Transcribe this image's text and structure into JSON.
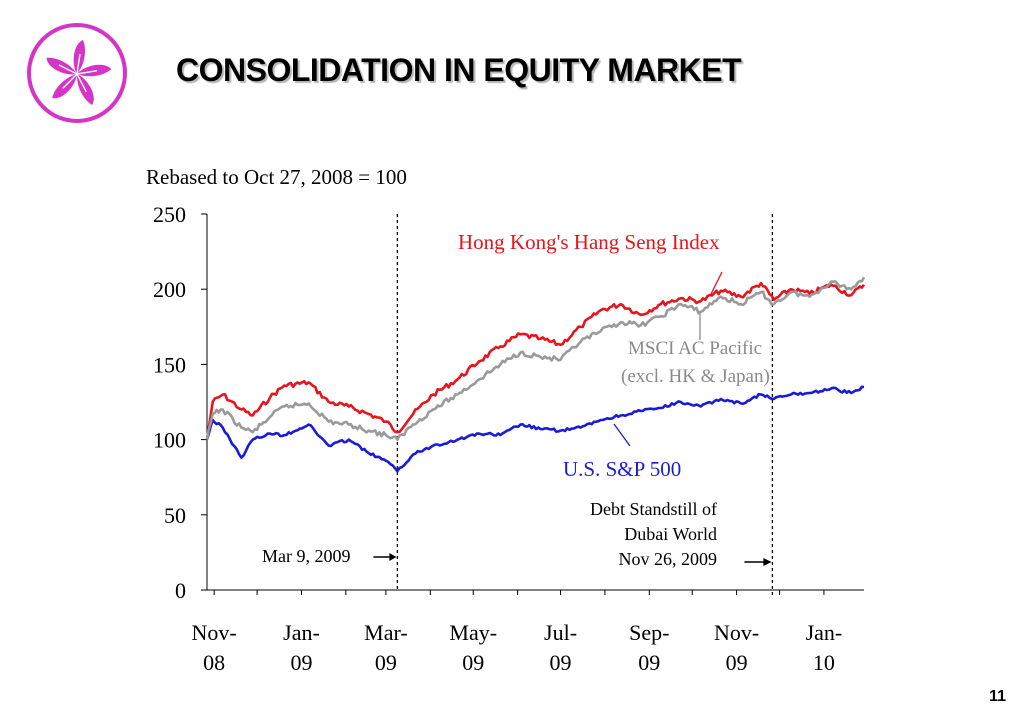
{
  "slide": {
    "title": "CONSOLIDATION IN EQUITY MARKET",
    "page_number": "11",
    "logo_icon": "bauhinia-flower-icon"
  },
  "colors": {
    "hang_seng": "#e8141b",
    "msci": "#9a9a9a",
    "sp500": "#1b1bd6",
    "logo": "#d634c6"
  },
  "chart_data": {
    "type": "line",
    "subtitle": "Rebased to Oct 27, 2008 = 100",
    "ylim": [
      0,
      250
    ],
    "yticks": [
      0,
      50,
      100,
      150,
      200,
      250
    ],
    "xlim": [
      "2008-10-27",
      "2010-01-29"
    ],
    "x_ticks": [
      {
        "date": "2008-11-01",
        "line1": "Nov-",
        "line2": "08"
      },
      {
        "date": "2009-01-01",
        "line1": "Jan-",
        "line2": "09"
      },
      {
        "date": "2009-03-01",
        "line1": "Mar-",
        "line2": "09"
      },
      {
        "date": "2009-05-01",
        "line1": "May-",
        "line2": "09"
      },
      {
        "date": "2009-07-01",
        "line1": "Jul-",
        "line2": "09"
      },
      {
        "date": "2009-09-01",
        "line1": "Sep-",
        "line2": "09"
      },
      {
        "date": "2009-11-01",
        "line1": "Nov-",
        "line2": "09"
      },
      {
        "date": "2010-01-01",
        "line1": "Jan-",
        "line2": "10"
      }
    ],
    "series": [
      {
        "name": "Hong Kong's Hang Seng Index",
        "color": "#e8141b",
        "points": [
          [
            "2008-10-27",
            100
          ],
          [
            "2008-10-31",
            125
          ],
          [
            "2008-11-07",
            130
          ],
          [
            "2008-11-20",
            120
          ],
          [
            "2008-11-28",
            116
          ],
          [
            "2008-12-10",
            128
          ],
          [
            "2008-12-20",
            136
          ],
          [
            "2009-01-06",
            138
          ],
          [
            "2009-01-20",
            125
          ],
          [
            "2009-02-03",
            122
          ],
          [
            "2009-02-17",
            117
          ],
          [
            "2009-03-01",
            112
          ],
          [
            "2009-03-09",
            105
          ],
          [
            "2009-03-20",
            117
          ],
          [
            "2009-04-03",
            130
          ],
          [
            "2009-04-20",
            140
          ],
          [
            "2009-05-05",
            152
          ],
          [
            "2009-05-20",
            162
          ],
          [
            "2009-06-03",
            170
          ],
          [
            "2009-06-17",
            167
          ],
          [
            "2009-07-01",
            163
          ],
          [
            "2009-07-15",
            175
          ],
          [
            "2009-07-29",
            186
          ],
          [
            "2009-08-12",
            190
          ],
          [
            "2009-08-26",
            183
          ],
          [
            "2009-09-09",
            190
          ],
          [
            "2009-09-23",
            194
          ],
          [
            "2009-10-07",
            192
          ],
          [
            "2009-10-21",
            199
          ],
          [
            "2009-11-04",
            195
          ],
          [
            "2009-11-18",
            204
          ],
          [
            "2009-11-27",
            193
          ],
          [
            "2009-12-09",
            200
          ],
          [
            "2009-12-22",
            197
          ],
          [
            "2010-01-06",
            203
          ],
          [
            "2010-01-20",
            196
          ],
          [
            "2010-01-29",
            203
          ]
        ]
      },
      {
        "name": "MSCI AC Pacific (excl. HK & Japan)",
        "color": "#9a9a9a",
        "points": [
          [
            "2008-10-27",
            100
          ],
          [
            "2008-10-31",
            117
          ],
          [
            "2008-11-07",
            120
          ],
          [
            "2008-11-20",
            108
          ],
          [
            "2008-11-28",
            105
          ],
          [
            "2008-12-10",
            115
          ],
          [
            "2008-12-20",
            122
          ],
          [
            "2009-01-06",
            124
          ],
          [
            "2009-01-20",
            112
          ],
          [
            "2009-02-03",
            110
          ],
          [
            "2009-02-17",
            106
          ],
          [
            "2009-03-01",
            103
          ],
          [
            "2009-03-09",
            100
          ],
          [
            "2009-03-20",
            110
          ],
          [
            "2009-04-03",
            120
          ],
          [
            "2009-04-20",
            130
          ],
          [
            "2009-05-05",
            140
          ],
          [
            "2009-05-20",
            150
          ],
          [
            "2009-06-03",
            158
          ],
          [
            "2009-06-17",
            155
          ],
          [
            "2009-07-01",
            153
          ],
          [
            "2009-07-15",
            165
          ],
          [
            "2009-07-29",
            172
          ],
          [
            "2009-08-12",
            178
          ],
          [
            "2009-08-26",
            176
          ],
          [
            "2009-09-09",
            182
          ],
          [
            "2009-09-23",
            190
          ],
          [
            "2009-10-07",
            185
          ],
          [
            "2009-10-21",
            195
          ],
          [
            "2009-11-04",
            190
          ],
          [
            "2009-11-18",
            198
          ],
          [
            "2009-11-27",
            190
          ],
          [
            "2009-12-09",
            198
          ],
          [
            "2009-12-22",
            195
          ],
          [
            "2010-01-06",
            205
          ],
          [
            "2010-01-20",
            200
          ],
          [
            "2010-01-29",
            208
          ]
        ]
      },
      {
        "name": "U.S. S&P 500",
        "color": "#1b1bd6",
        "points": [
          [
            "2008-10-27",
            100
          ],
          [
            "2008-10-31",
            113
          ],
          [
            "2008-11-07",
            108
          ],
          [
            "2008-11-20",
            88
          ],
          [
            "2008-11-28",
            100
          ],
          [
            "2008-12-10",
            104
          ],
          [
            "2008-12-20",
            103
          ],
          [
            "2009-01-06",
            110
          ],
          [
            "2009-01-20",
            96
          ],
          [
            "2009-02-03",
            100
          ],
          [
            "2009-02-17",
            91
          ],
          [
            "2009-03-01",
            86
          ],
          [
            "2009-03-09",
            79
          ],
          [
            "2009-03-20",
            90
          ],
          [
            "2009-04-03",
            96
          ],
          [
            "2009-04-20",
            100
          ],
          [
            "2009-05-05",
            104
          ],
          [
            "2009-05-20",
            103
          ],
          [
            "2009-06-03",
            110
          ],
          [
            "2009-06-17",
            107
          ],
          [
            "2009-07-01",
            106
          ],
          [
            "2009-07-15",
            108
          ],
          [
            "2009-07-29",
            113
          ],
          [
            "2009-08-12",
            116
          ],
          [
            "2009-08-26",
            119
          ],
          [
            "2009-09-09",
            121
          ],
          [
            "2009-09-23",
            125
          ],
          [
            "2009-10-07",
            122
          ],
          [
            "2009-10-21",
            127
          ],
          [
            "2009-11-04",
            124
          ],
          [
            "2009-11-18",
            130
          ],
          [
            "2009-11-27",
            127
          ],
          [
            "2009-12-09",
            130
          ],
          [
            "2009-12-22",
            131
          ],
          [
            "2010-01-06",
            134
          ],
          [
            "2010-01-20",
            131
          ],
          [
            "2010-01-29",
            135
          ]
        ]
      }
    ],
    "event_markers": [
      {
        "date": "2009-03-09",
        "label": "Mar 9, 2009"
      },
      {
        "date": "2009-11-26",
        "label_lines": [
          "Debt Standstill of",
          "Dubai World",
          "Nov 26, 2009"
        ]
      }
    ]
  }
}
